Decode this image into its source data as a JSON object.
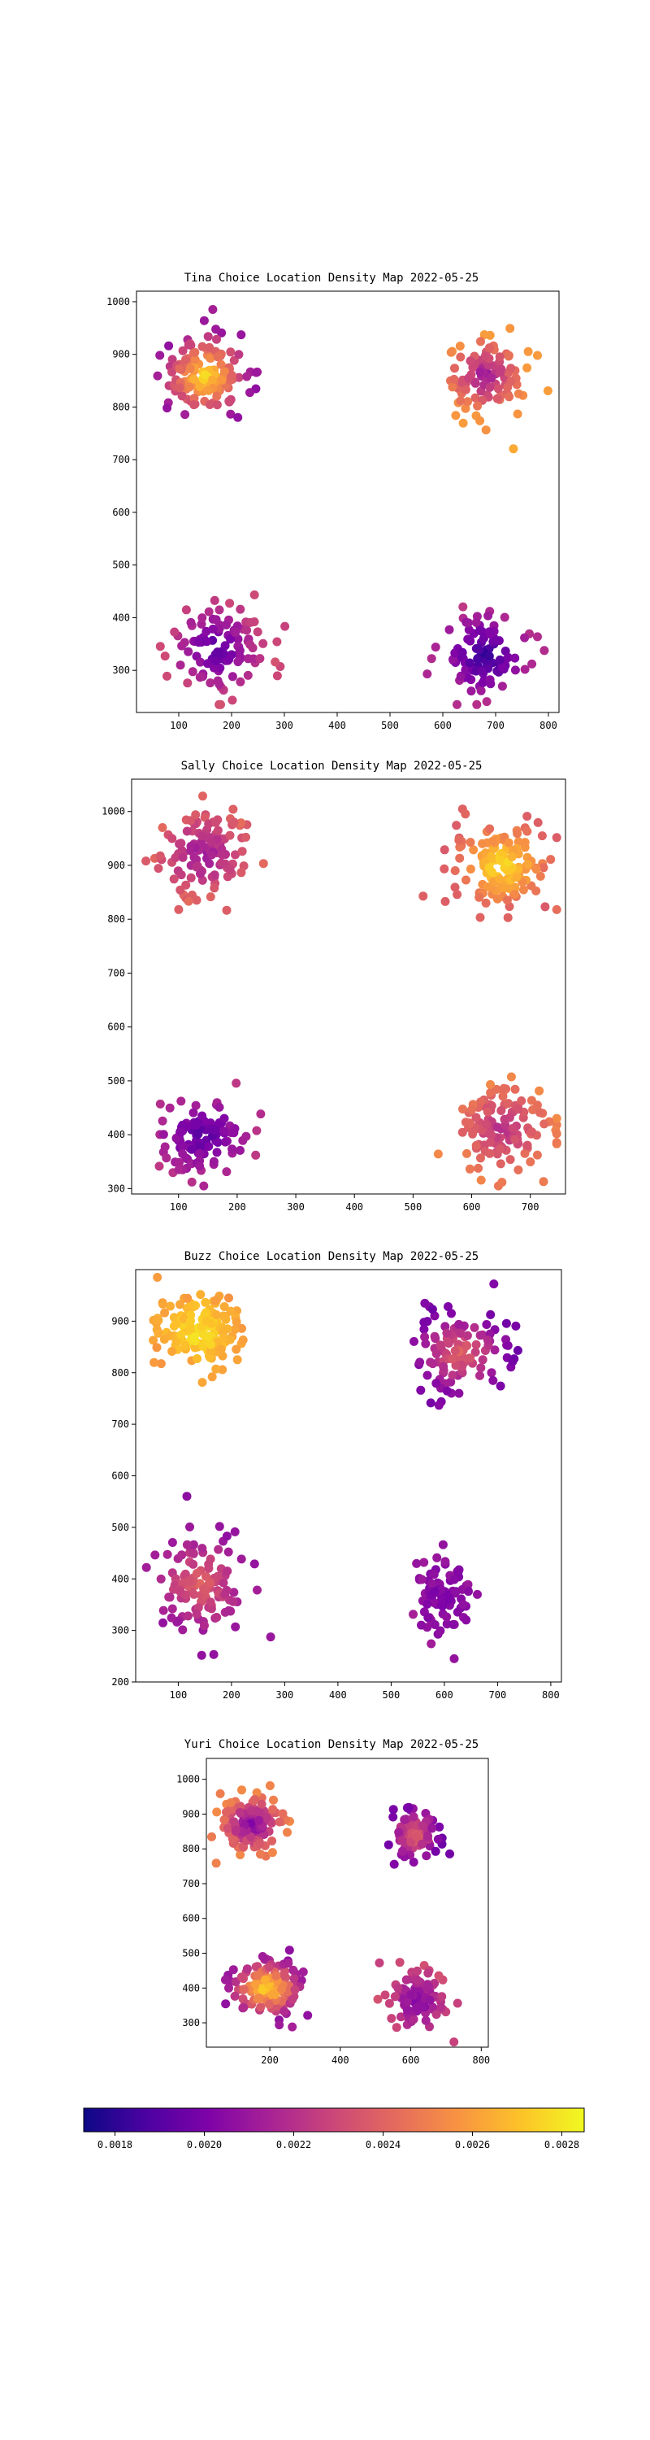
{
  "figure": {
    "colormap": "plasma",
    "colorbar": {
      "orientation": "horizontal",
      "min": 0.00173,
      "max": 0.00285,
      "ticks": [
        0.0018,
        0.002,
        0.0022,
        0.0024,
        0.0026,
        0.0028
      ],
      "tick_labels": [
        "0.0018",
        "0.0020",
        "0.0022",
        "0.0024",
        "0.0026",
        "0.0028"
      ]
    }
  },
  "chart_data": [
    {
      "type": "scatter",
      "title": "Tina Choice Location Density Map 2022-05-25",
      "xlim": [
        20,
        820
      ],
      "ylim": [
        220,
        1020
      ],
      "xticks": [
        100,
        200,
        300,
        400,
        500,
        600,
        700,
        800
      ],
      "yticks": [
        300,
        400,
        500,
        600,
        700,
        800,
        900,
        1000
      ],
      "clusters": [
        {
          "cx": 150,
          "cy": 860,
          "sx": 40,
          "sy": 40,
          "n": 150,
          "c_center": 0.0028,
          "c_edge": 0.0021
        },
        {
          "cx": 680,
          "cy": 860,
          "sx": 40,
          "sy": 38,
          "n": 110,
          "c_center": 0.0021,
          "c_edge": 0.0026
        },
        {
          "cx": 170,
          "cy": 340,
          "sx": 45,
          "sy": 45,
          "n": 110,
          "c_center": 0.0019,
          "c_edge": 0.0023
        },
        {
          "cx": 680,
          "cy": 330,
          "sx": 45,
          "sy": 40,
          "n": 100,
          "c_center": 0.0018,
          "c_edge": 0.0022
        }
      ]
    },
    {
      "type": "scatter",
      "title": "Sally Choice Location Density Map 2022-05-25",
      "xlim": [
        20,
        760
      ],
      "ylim": [
        290,
        1060
      ],
      "xticks": [
        100,
        200,
        300,
        400,
        500,
        600,
        700
      ],
      "yticks": [
        300,
        400,
        500,
        600,
        700,
        800,
        900,
        1000
      ],
      "clusters": [
        {
          "cx": 140,
          "cy": 920,
          "sx": 40,
          "sy": 40,
          "n": 120,
          "c_center": 0.0021,
          "c_edge": 0.0024
        },
        {
          "cx": 650,
          "cy": 900,
          "sx": 40,
          "sy": 38,
          "n": 150,
          "c_center": 0.0028,
          "c_edge": 0.0024
        },
        {
          "cx": 140,
          "cy": 400,
          "sx": 42,
          "sy": 38,
          "n": 110,
          "c_center": 0.0019,
          "c_edge": 0.0022
        },
        {
          "cx": 650,
          "cy": 410,
          "sx": 40,
          "sy": 40,
          "n": 130,
          "c_center": 0.0022,
          "c_edge": 0.0025
        }
      ]
    },
    {
      "type": "scatter",
      "title": "Buzz Choice Location Density Map 2022-05-25",
      "xlim": [
        20,
        820
      ],
      "ylim": [
        200,
        1000
      ],
      "xticks": [
        100,
        200,
        300,
        400,
        500,
        600,
        700,
        800
      ],
      "yticks": [
        200,
        300,
        400,
        500,
        600,
        700,
        800,
        900
      ],
      "clusters": [
        {
          "cx": 140,
          "cy": 880,
          "sx": 40,
          "sy": 35,
          "n": 150,
          "c_center": 0.0028,
          "c_edge": 0.0026
        },
        {
          "cx": 630,
          "cy": 840,
          "sx": 45,
          "sy": 40,
          "n": 120,
          "c_center": 0.0024,
          "c_edge": 0.002
        },
        {
          "cx": 140,
          "cy": 390,
          "sx": 42,
          "sy": 45,
          "n": 120,
          "c_center": 0.0024,
          "c_edge": 0.0021
        },
        {
          "cx": 600,
          "cy": 370,
          "sx": 30,
          "sy": 40,
          "n": 90,
          "c_center": 0.002,
          "c_edge": 0.0021
        }
      ]
    },
    {
      "type": "scatter",
      "title": "Yuri Choice Location Density Map 2022-05-25",
      "xlim": [
        20,
        820
      ],
      "ylim": [
        230,
        1060
      ],
      "xticks": [
        200,
        400,
        600,
        800
      ],
      "yticks": [
        300,
        400,
        500,
        600,
        700,
        800,
        900,
        1000
      ],
      "clusters": [
        {
          "cx": 150,
          "cy": 870,
          "sx": 45,
          "sy": 40,
          "n": 130,
          "c_center": 0.002,
          "c_edge": 0.0025
        },
        {
          "cx": 610,
          "cy": 840,
          "sx": 35,
          "sy": 40,
          "n": 90,
          "c_center": 0.0024,
          "c_edge": 0.002
        },
        {
          "cx": 190,
          "cy": 400,
          "sx": 50,
          "sy": 40,
          "n": 140,
          "c_center": 0.0028,
          "c_edge": 0.0021
        },
        {
          "cx": 620,
          "cy": 360,
          "sx": 40,
          "sy": 45,
          "n": 100,
          "c_center": 0.002,
          "c_edge": 0.0023
        }
      ]
    }
  ]
}
